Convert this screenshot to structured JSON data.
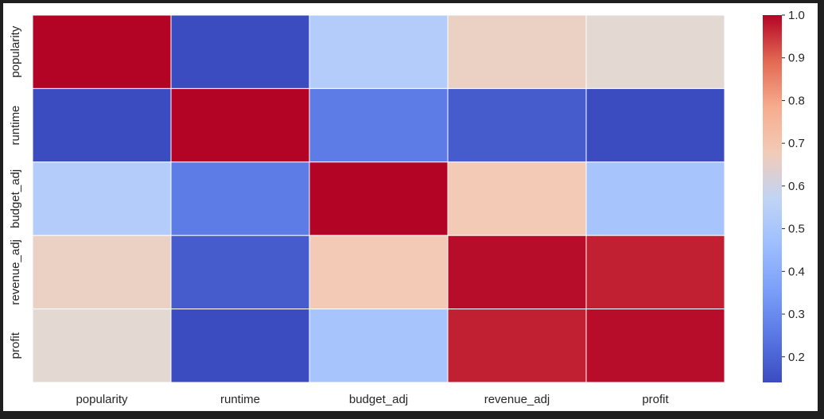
{
  "chart_data": {
    "type": "heatmap",
    "title": "",
    "xlabel": "",
    "ylabel": "",
    "x_labels": [
      "popularity",
      "runtime",
      "budget_adj",
      "revenue_adj",
      "profit"
    ],
    "y_labels": [
      "popularity",
      "runtime",
      "budget_adj",
      "revenue_adj",
      "profit"
    ],
    "values": [
      [
        1.0,
        0.14,
        0.53,
        0.64,
        0.6
      ],
      [
        0.14,
        1.0,
        0.26,
        0.18,
        0.14
      ],
      [
        0.53,
        0.26,
        1.0,
        0.68,
        0.49
      ],
      [
        0.64,
        0.18,
        0.68,
        0.99,
        0.97
      ],
      [
        0.6,
        0.14,
        0.49,
        0.97,
        0.99
      ]
    ],
    "colormap": "coolwarm",
    "colorbar": {
      "min": 0.14,
      "max": 1.0,
      "ticks": [
        0.2,
        0.3,
        0.4,
        0.5,
        0.6,
        0.7,
        0.8,
        0.9,
        1.0
      ],
      "tick_labels": [
        "0.2",
        "0.3",
        "0.4",
        "0.5",
        "0.6",
        "0.7",
        "0.8",
        "0.9",
        "1.0"
      ]
    },
    "cell_separator_color": "#ffffff",
    "grid": false
  }
}
